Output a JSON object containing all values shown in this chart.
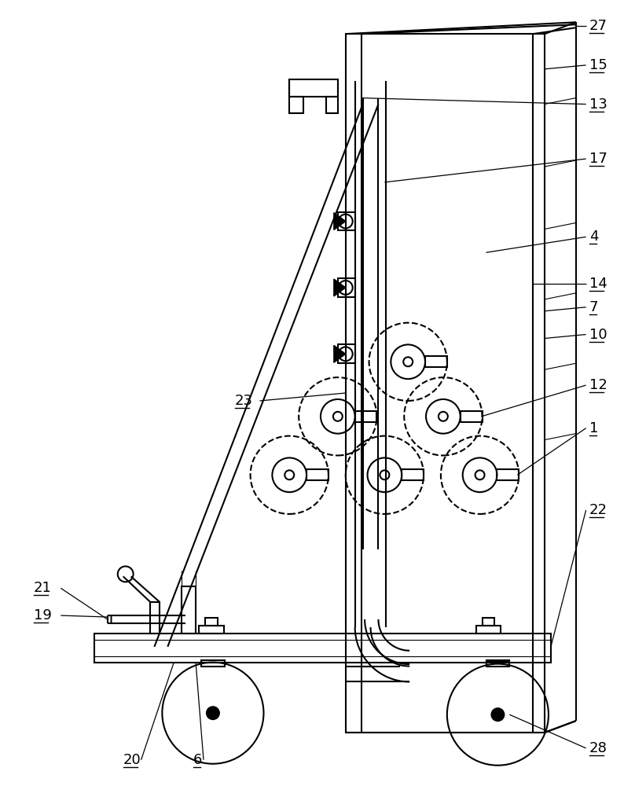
{
  "bg_color": "#ffffff",
  "lc": "#000000",
  "lw": 1.5,
  "thin": 0.8,
  "fig_w": 8.08,
  "fig_h": 10.0
}
